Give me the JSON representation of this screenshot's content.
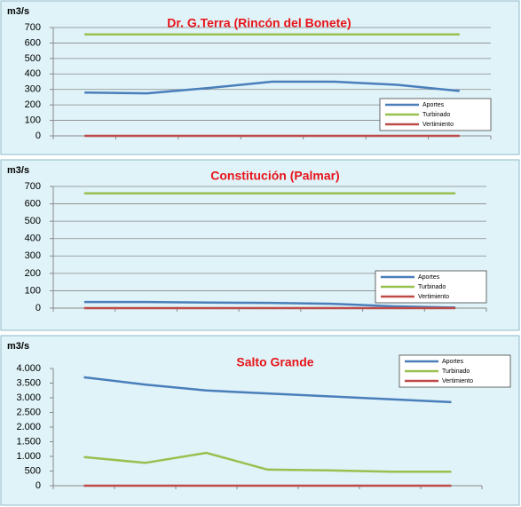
{
  "chart_data": [
    {
      "type": "line",
      "title": "Dr. G.Terra (Rincón del Bonete)",
      "y_label": "m3/s",
      "categories": [
        null,
        null,
        null,
        null,
        null,
        null,
        null
      ],
      "series": [
        {
          "name": "Aportes",
          "color": "#4a7ebb",
          "values": [
            280,
            275,
            310,
            350,
            350,
            330,
            290
          ]
        },
        {
          "name": "Turbinado",
          "color": "#98c04f",
          "values": [
            655,
            655,
            655,
            655,
            655,
            655,
            655
          ]
        },
        {
          "name": "Vertimiento",
          "color": "#be4b48",
          "values": [
            0,
            0,
            0,
            0,
            0,
            0,
            0
          ]
        }
      ],
      "ylim": [
        0,
        700
      ],
      "yticks": [
        0,
        100,
        200,
        300,
        400,
        500,
        600,
        700
      ],
      "grid": true,
      "legend": "lower right"
    },
    {
      "type": "line",
      "title": "Constitución (Palmar)",
      "y_label": "m3/s",
      "categories": [
        null,
        null,
        null,
        null,
        null,
        null,
        null
      ],
      "series": [
        {
          "name": "Aportes",
          "color": "#4a7ebb",
          "values": [
            35,
            35,
            32,
            30,
            25,
            10,
            3
          ]
        },
        {
          "name": "Turbinado",
          "color": "#98c04f",
          "values": [
            660,
            660,
            660,
            660,
            660,
            660,
            660
          ]
        },
        {
          "name": "Vertimiento",
          "color": "#be4b48",
          "values": [
            0,
            0,
            0,
            0,
            0,
            0,
            0
          ]
        }
      ],
      "ylim": [
        0,
        700
      ],
      "yticks": [
        0,
        100,
        200,
        300,
        400,
        500,
        600,
        700
      ],
      "grid": true,
      "legend": "lower right"
    },
    {
      "type": "line",
      "title": "Salto Grande",
      "y_label": "m3/s",
      "categories": [
        null,
        null,
        null,
        null,
        null,
        null,
        null
      ],
      "series": [
        {
          "name": "Aportes",
          "color": "#4a7ebb",
          "values": [
            3700,
            3450,
            3250,
            3150,
            3050,
            2950,
            2850
          ]
        },
        {
          "name": "Turbinado",
          "color": "#98c04f",
          "values": [
            980,
            780,
            1120,
            550,
            520,
            480,
            480
          ]
        },
        {
          "name": "Vertimiento",
          "color": "#be4b48",
          "values": [
            0,
            0,
            0,
            0,
            0,
            0,
            0
          ]
        }
      ],
      "ylim": [
        0,
        4000
      ],
      "yticks": [
        0,
        {
          "value": 500,
          "label": "500"
        },
        {
          "value": 1000,
          "label": "1.000"
        },
        {
          "value": 1500,
          "label": "1.500"
        },
        {
          "value": 2000,
          "label": "2.000"
        },
        {
          "value": 2500,
          "label": "2.500"
        },
        {
          "value": 3000,
          "label": "3.000"
        },
        {
          "value": 3500,
          "label": "3.500"
        },
        {
          "value": 4000,
          "label": "4.000"
        }
      ],
      "grid": false,
      "legend": "upper right"
    }
  ]
}
